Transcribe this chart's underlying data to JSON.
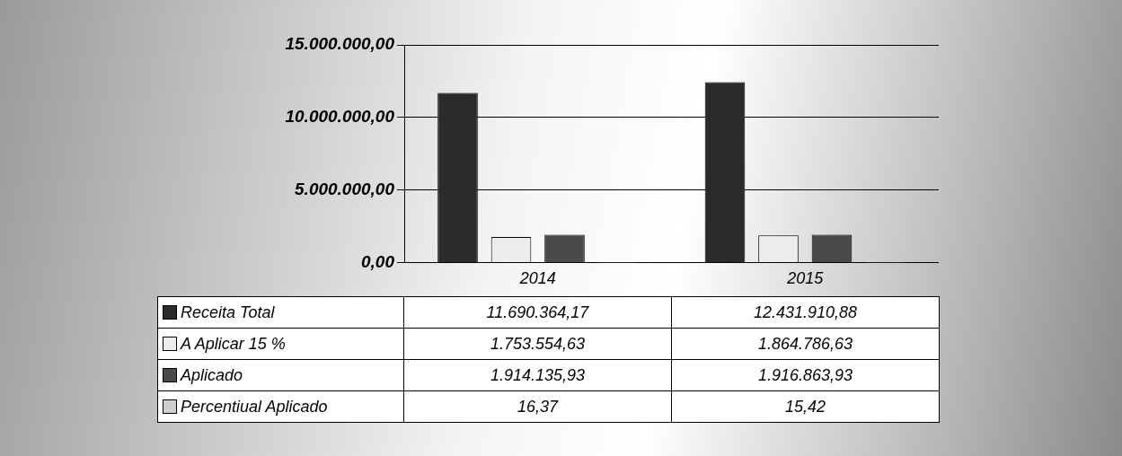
{
  "chart_data": {
    "type": "bar",
    "categories": [
      "2014",
      "2015"
    ],
    "series": [
      {
        "name": "Receita Total",
        "color": "#2b2b2b",
        "values": [
          11690364.17,
          12431910.88
        ],
        "value_labels": [
          "11.690.364,17",
          "12.431.910,88"
        ]
      },
      {
        "name": "A Aplicar 15 %",
        "color": "#ececec",
        "values": [
          1753554.63,
          1864786.63
        ],
        "value_labels": [
          "1.753.554,63",
          "1.864.786,63"
        ]
      },
      {
        "name": "Aplicado",
        "color": "#4a4a4a",
        "values": [
          1914135.93,
          1916863.93
        ],
        "value_labels": [
          "1.914.135,93",
          "1.916.863,93"
        ]
      },
      {
        "name": "Percentiual Aplicado",
        "color": "#cfcfcf",
        "values": [
          16.37,
          15.42
        ],
        "value_labels": [
          "16,37",
          "15,42"
        ]
      }
    ],
    "ylim": [
      0,
      15000000
    ],
    "yticks": [
      {
        "value": 0,
        "label": "0,00"
      },
      {
        "value": 5000000,
        "label": "5.000.000,00"
      },
      {
        "value": 10000000,
        "label": "10.000.000,00"
      },
      {
        "value": 15000000,
        "label": "15.000.000,00"
      }
    ],
    "grid": "y",
    "legend": "bottom"
  }
}
